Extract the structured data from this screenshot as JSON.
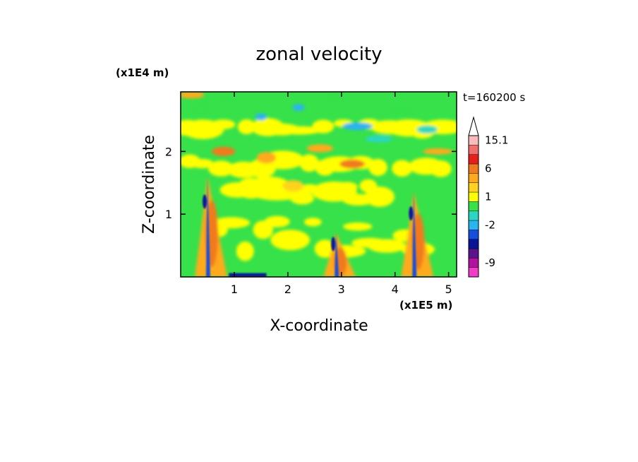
{
  "chart_data": {
    "type": "heatmap",
    "title": "zonal velocity",
    "xlabel": "X-coordinate",
    "ylabel": "Z-coordinate",
    "x_unit": "(x1E5 m)",
    "y_unit": "(x1E4 m)",
    "time_label": "t=160200 s",
    "xlim": [
      0,
      5.15
    ],
    "ylim": [
      0,
      2.95
    ],
    "x_ticks": [
      {
        "value": 1,
        "label": "1"
      },
      {
        "value": 2,
        "label": "2"
      },
      {
        "value": 3,
        "label": "3"
      },
      {
        "value": 4,
        "label": "4"
      },
      {
        "value": 5,
        "label": "5"
      }
    ],
    "y_ticks": [
      {
        "value": 1,
        "label": "1"
      },
      {
        "value": 2,
        "label": "2"
      }
    ],
    "colorbar": {
      "levels": [
        {
          "color": "#f03cc8",
          "label": ""
        },
        {
          "color": "#b0149e",
          "label": "-9"
        },
        {
          "color": "#5a148c",
          "label": ""
        },
        {
          "color": "#0a1496",
          "label": ""
        },
        {
          "color": "#1450dc",
          "label": ""
        },
        {
          "color": "#2ab4f0",
          "label": "-2"
        },
        {
          "color": "#2bd7c3",
          "label": ""
        },
        {
          "color": "#36e14a",
          "label": ""
        },
        {
          "color": "#ffff00",
          "label": "1"
        },
        {
          "color": "#ffd21e",
          "label": ""
        },
        {
          "color": "#ffaa1e",
          "label": ""
        },
        {
          "color": "#f07a1e",
          "label": "6"
        },
        {
          "color": "#e61e1e",
          "label": ""
        },
        {
          "color": "#f06e6e",
          "label": ""
        },
        {
          "color": "#f8bcbc",
          "label": "15.1"
        }
      ],
      "extend_top": true
    },
    "fields": {
      "background": "#36e14a",
      "yellow_bands": [
        {
          "x0": 0.0,
          "x1": 5.15,
          "z0": 1.55,
          "z1": 2.05
        },
        {
          "x0": 0.0,
          "x1": 5.15,
          "z0": 2.25,
          "z1": 2.55
        },
        {
          "x0": 0.6,
          "x1": 4.6,
          "z0": 0.05,
          "z1": 1.2
        },
        {
          "x0": 1.0,
          "x1": 3.8,
          "z0": 1.1,
          "z1": 1.6
        }
      ],
      "plumes": [
        {
          "x": 0.5,
          "z_top": 1.6
        },
        {
          "x": 2.9,
          "z_top": 0.7
        },
        {
          "x": 4.35,
          "z_top": 1.35
        }
      ]
    }
  }
}
